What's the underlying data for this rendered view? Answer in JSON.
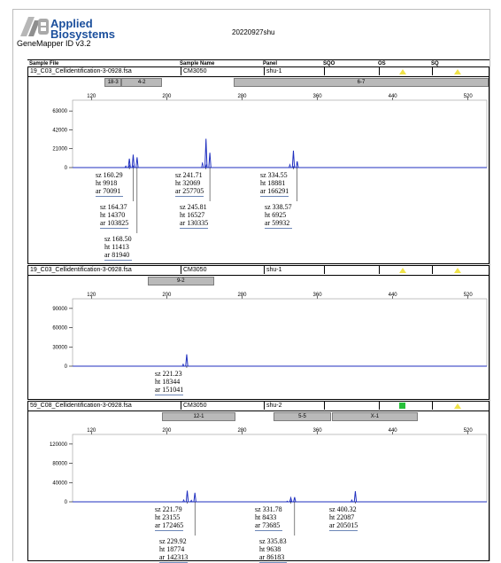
{
  "header": {
    "brand_line1": "Applied",
    "brand_line2": "Biosystems",
    "software": "GeneMapper ID v3.2",
    "report_title": "20220927shu"
  },
  "table_header": {
    "sample_file": "Sample File",
    "sample_name": "Sample Name",
    "panel": "Panel",
    "sqo": "SQO",
    "os": "OS",
    "sq": "SQ"
  },
  "colors": {
    "trace": "#1f2fbf",
    "bin": "#b9b9b9",
    "warning_flag": "#f0e34a",
    "pass_flag": "#27c03a"
  },
  "panels": [
    {
      "sample_file": "19_C03_Cellidentification-3-0928.fsa",
      "sample_name": "CM3050",
      "panel": "shu-1",
      "os_flag": "yellow-triangle",
      "sq_flag": "yellow-triangle",
      "bins": [
        {
          "label": "18-3",
          "start": 134,
          "end": 152
        },
        {
          "label": "4-2",
          "start": 152,
          "end": 195
        },
        {
          "label": "6-7",
          "start": 271,
          "end": 542
        }
      ],
      "y_ticks": [
        "63000",
        "42000",
        "21000",
        "0"
      ],
      "x_ticks": [
        "120",
        "200",
        "280",
        "360",
        "440",
        "520"
      ],
      "peaks": [
        {
          "sz": 160.29,
          "ht": 9918,
          "ar": 70091
        },
        {
          "sz": 164.37,
          "ht": 14370,
          "ar": 103825
        },
        {
          "sz": 168.5,
          "ht": 11413,
          "ar": 81940
        },
        {
          "sz": 241.71,
          "ht": 32069,
          "ar": 257705
        },
        {
          "sz": 245.81,
          "ht": 16527,
          "ar": 130335
        },
        {
          "sz": 334.55,
          "ht": 18881,
          "ar": 166291
        },
        {
          "sz": 338.57,
          "ht": 6925,
          "ar": 59932
        }
      ],
      "labels": [
        {
          "sz": "sz 160.29",
          "ht": "ht 9918",
          "ar": "ar 70091"
        },
        {
          "sz": "sz 164.37",
          "ht": "ht 14370",
          "ar": "ar 103825"
        },
        {
          "sz": "sz 168.50",
          "ht": "ht 11413",
          "ar": "ar 81940"
        },
        {
          "sz": "sz 241.71",
          "ht": "ht 32069",
          "ar": "ar 257705"
        },
        {
          "sz": "sz 245.81",
          "ht": "ht 16527",
          "ar": "ar 130335"
        },
        {
          "sz": "sz 334.55",
          "ht": "ht 18881",
          "ar": "ar 166291"
        },
        {
          "sz": "sz 338.57",
          "ht": "ht 6925",
          "ar": "ar 59932"
        }
      ]
    },
    {
      "sample_file": "19_C03_Cellidentification-3-0928.fsa",
      "sample_name": "CM3050",
      "panel": "shu-1",
      "os_flag": "yellow-triangle",
      "sq_flag": "yellow-triangle",
      "bins": [
        {
          "label": "9-2",
          "start": 180,
          "end": 250
        }
      ],
      "y_ticks": [
        "90000",
        "60000",
        "30000",
        "0"
      ],
      "x_ticks": [
        "120",
        "200",
        "280",
        "360",
        "440",
        "520"
      ],
      "peaks": [
        {
          "sz": 221.23,
          "ht": 18344,
          "ar": 151041
        }
      ],
      "labels": [
        {
          "sz": "sz 221.23",
          "ht": "ht 18344",
          "ar": "ar 151041"
        }
      ]
    },
    {
      "sample_file": "59_C08_Cellidentification-3-0928.fsa",
      "sample_name": "CM3050",
      "panel": "shu-2",
      "os_flag": "green-square",
      "sq_flag": "yellow-triangle",
      "bins": [
        {
          "label": "12-1",
          "start": 195,
          "end": 273
        },
        {
          "label": "5-5",
          "start": 313,
          "end": 375
        },
        {
          "label": "X-1",
          "start": 375,
          "end": 467
        }
      ],
      "y_ticks": [
        "120000",
        "80000",
        "40000",
        "0"
      ],
      "x_ticks": [
        "120",
        "200",
        "280",
        "360",
        "440",
        "520"
      ],
      "peaks": [
        {
          "sz": 221.79,
          "ht": 23155,
          "ar": 172465
        },
        {
          "sz": 229.92,
          "ht": 18774,
          "ar": 142313
        },
        {
          "sz": 331.78,
          "ht": 8433,
          "ar": 73685
        },
        {
          "sz": 335.83,
          "ht": 9638,
          "ar": 86183
        },
        {
          "sz": 400.32,
          "ht": 22087,
          "ar": 205015
        }
      ],
      "labels": [
        {
          "sz": "sz 221.79",
          "ht": "ht 23155",
          "ar": "ar 172465"
        },
        {
          "sz": "sz 229.92",
          "ht": "ht 18774",
          "ar": "ar 142313"
        },
        {
          "sz": "sz 331.78",
          "ht": "ht 8433",
          "ar": "ar 73685"
        },
        {
          "sz": "sz 335.83",
          "ht": "ht 9638",
          "ar": "ar 86183"
        },
        {
          "sz": "sz 400.32",
          "ht": "ht 22087",
          "ar": "ar 205015"
        }
      ]
    }
  ]
}
